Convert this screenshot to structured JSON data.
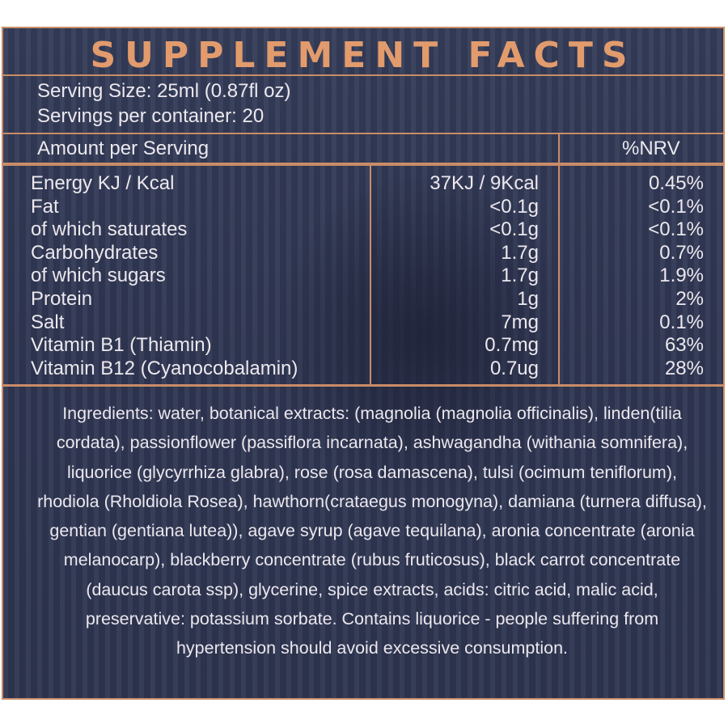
{
  "title": "SUPPLEMENT FACTS",
  "serving": {
    "size": "Serving Size: 25ml (0.87fl oz)",
    "per_container": "Servings per container: 20"
  },
  "header": {
    "amount_label": "Amount per Serving",
    "nrv_label": "%NRV"
  },
  "nutrients": [
    {
      "name": "Energy KJ / Kcal",
      "amount": "37KJ / 9Kcal",
      "nrv": "0.45%"
    },
    {
      "name": "Fat",
      "amount": "<0.1g",
      "nrv": "<0.1%"
    },
    {
      "name": "of which saturates",
      "amount": "<0.1g",
      "nrv": "<0.1%"
    },
    {
      "name": "Carbohydrates",
      "amount": "1.7g",
      "nrv": "0.7%"
    },
    {
      "name": "of which sugars",
      "amount": "1.7g",
      "nrv": "1.9%"
    },
    {
      "name": "Protein",
      "amount": "1g",
      "nrv": "2%"
    },
    {
      "name": "Salt",
      "amount": "7mg",
      "nrv": "0.1%"
    },
    {
      "name": "Vitamin B1 (Thiamin)",
      "amount": "0.7mg",
      "nrv": "63%"
    },
    {
      "name": "Vitamin B12 (Cyanocobalamin)",
      "amount": "0.7ug",
      "nrv": "28%"
    }
  ],
  "ingredients": "Ingredients: water, botanical extracts: (magnolia (magnolia officinalis), linden(tilia cordata), passionflower (passiflora incarnata), ashwagandha (withania somnifera), liquorice (glycyrrhiza glabra), rose (rosa damascena), tulsi (ocimum teniflorum), rhodiola (Rholdiola Rosea), hawthorn(crataegus monogyna), damiana (turnera diffusa), gentian (gentiana lutea)),  agave syrup (agave tequilana), aronia concentrate (aronia melanocarp), blackberry concentrate (rubus fruticosus), black carrot concentrate (daucus carota ssp), glycerine, spice extracts, acids: citric acid, malic acid,  preservative: potassium sorbate. Contains liquorice - people suffering  from hypertension should avoid excessive consumption.",
  "colors": {
    "accent": "#e29b6d",
    "border": "#c98c68",
    "background": "#2f3652",
    "text": "#ece8ee"
  }
}
